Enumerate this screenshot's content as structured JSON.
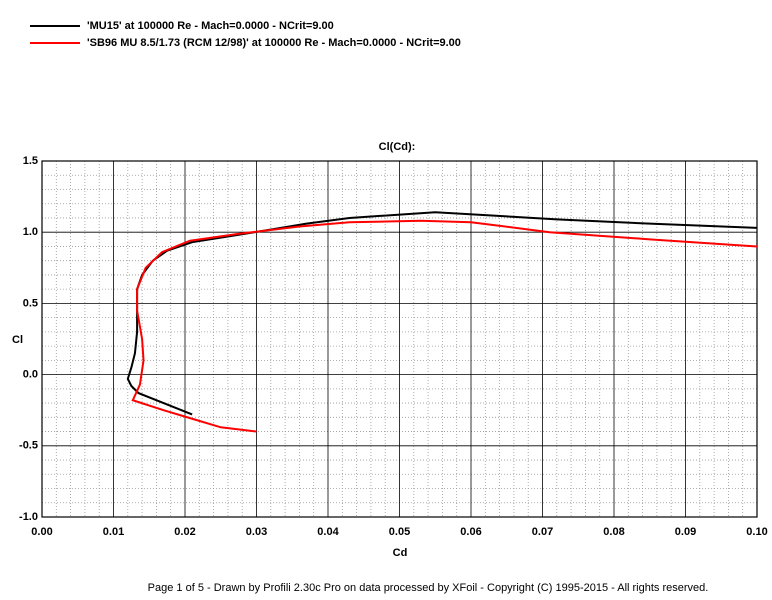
{
  "chart_data": {
    "type": "line",
    "title": "Cl(Cd):",
    "xlabel": "Cd",
    "ylabel": "Cl",
    "xlim": [
      0,
      0.1
    ],
    "ylim": [
      -1.0,
      1.5
    ],
    "xticks": [
      {
        "value": 0,
        "label": "0.00"
      },
      {
        "value": 0.01,
        "label": "0.01"
      },
      {
        "value": 0.02,
        "label": "0.02"
      },
      {
        "value": 0.03,
        "label": "0.03"
      },
      {
        "value": 0.04,
        "label": "0.04"
      },
      {
        "value": 0.05,
        "label": "0.05"
      },
      {
        "value": 0.06,
        "label": "0.06"
      },
      {
        "value": 0.07,
        "label": "0.07"
      },
      {
        "value": 0.08,
        "label": "0.08"
      },
      {
        "value": 0.09,
        "label": "0.09"
      },
      {
        "value": 0.1,
        "label": "0.10"
      }
    ],
    "yticks": [
      {
        "value": -1.0,
        "label": "-1.0"
      },
      {
        "value": -0.5,
        "label": "-0.5"
      },
      {
        "value": 0,
        "label": "0.0"
      },
      {
        "value": 0.5,
        "label": "0.5"
      },
      {
        "value": 1.0,
        "label": "1.0"
      },
      {
        "value": 1.5,
        "label": "1.5"
      }
    ],
    "grid": true,
    "minor_grid": true,
    "series": [
      {
        "name": "'MU15' at 100000 Re - Mach=0.0000 - NCrit=9.00",
        "color": "#000000",
        "x": [
          0.021,
          0.017,
          0.0135,
          0.0125,
          0.012,
          0.0125,
          0.013,
          0.0133,
          0.0133,
          0.0133,
          0.014,
          0.0155,
          0.0175,
          0.021,
          0.026,
          0.031,
          0.037,
          0.043,
          0.049,
          0.055,
          0.062,
          0.072,
          0.085,
          0.1
        ],
        "values": [
          -0.28,
          -0.2,
          -0.13,
          -0.08,
          -0.03,
          0.05,
          0.15,
          0.3,
          0.45,
          0.6,
          0.7,
          0.8,
          0.87,
          0.93,
          0.97,
          1.01,
          1.06,
          1.1,
          1.12,
          1.14,
          1.12,
          1.09,
          1.06,
          1.03
        ]
      },
      {
        "name": "'SB96 MU 8.5/1.73 (RCM 12/98)' at 100000 Re - Mach=0.0000 - NCrit=9.00",
        "color": "#ff0000",
        "x": [
          0.03,
          0.025,
          0.021,
          0.017,
          0.0127,
          0.0137,
          0.0142,
          0.014,
          0.0133,
          0.0133,
          0.0145,
          0.0168,
          0.0207,
          0.0277,
          0.036,
          0.043,
          0.053,
          0.06,
          0.071,
          0.085,
          0.1
        ],
        "values": [
          -0.4,
          -0.37,
          -0.31,
          -0.25,
          -0.18,
          -0.07,
          0.1,
          0.25,
          0.45,
          0.6,
          0.75,
          0.86,
          0.94,
          0.99,
          1.04,
          1.07,
          1.08,
          1.07,
          1.0,
          0.95,
          0.9
        ]
      }
    ]
  },
  "footer": "Page 1 of 5   -   Drawn by Profili 2.30c Pro on data processed by  XFoil - Copyright (C) 1995-2015 - All rights reserved."
}
